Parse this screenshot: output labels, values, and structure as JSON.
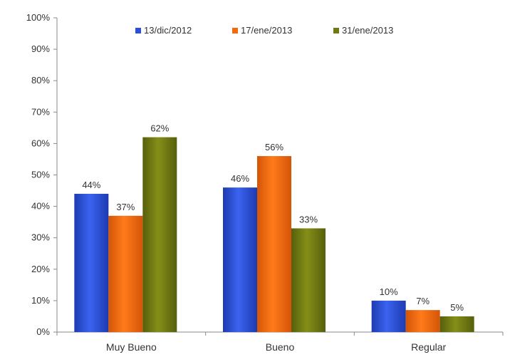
{
  "chart_data": {
    "type": "bar",
    "categories": [
      "Muy Bueno",
      "Bueno",
      "Regular"
    ],
    "series": [
      {
        "name": "13/dic/2012",
        "values": [
          44,
          46,
          10
        ],
        "labels": [
          "44%",
          "46%",
          "10%"
        ],
        "color": "#2b4fd6"
      },
      {
        "name": "17/ene/2013",
        "values": [
          37,
          56,
          7
        ],
        "labels": [
          "37%",
          "56%",
          "7%"
        ],
        "color": "#f26a0c"
      },
      {
        "name": "31/ene/2013",
        "values": [
          62,
          33,
          5
        ],
        "labels": [
          "62%",
          "33%",
          "5%"
        ],
        "color": "#6f7a12"
      }
    ],
    "yticks": [
      "0%",
      "10%",
      "20%",
      "30%",
      "40%",
      "50%",
      "60%",
      "70%",
      "80%",
      "90%",
      "100%"
    ],
    "ylim": [
      0,
      100
    ],
    "grid": false,
    "legend_position": "top"
  }
}
